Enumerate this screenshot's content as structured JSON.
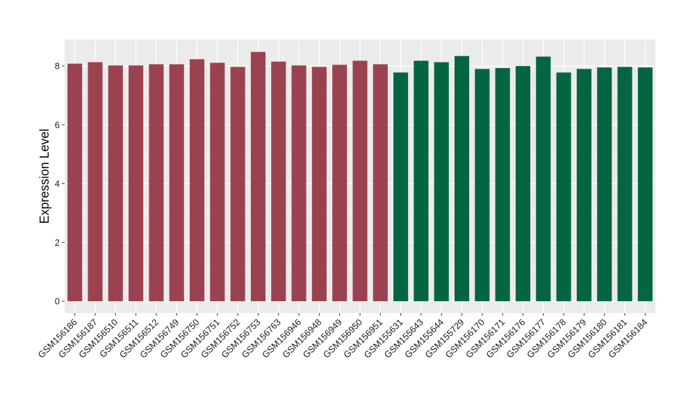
{
  "chart_data": {
    "type": "bar",
    "title": "",
    "xlabel": "",
    "ylabel": "Expression Level",
    "ylim": [
      -0.4,
      8.9
    ],
    "yticks": [
      0,
      2,
      4,
      6,
      8
    ],
    "grid": true,
    "legend": "none",
    "background_color": "#ebebeb",
    "grid_color": "#ffffff",
    "group_colors": [
      "#9b4250",
      "#036641"
    ],
    "categories": [
      "GSM156186",
      "GSM156187",
      "GSM156510",
      "GSM156511",
      "GSM156512",
      "GSM156749",
      "GSM156750",
      "GSM156751",
      "GSM156752",
      "GSM156753",
      "GSM156763",
      "GSM156946",
      "GSM156948",
      "GSM156949",
      "GSM156950",
      "GSM156951",
      "GSM155631",
      "GSM155643",
      "GSM155644",
      "GSM155729",
      "GSM156170",
      "GSM156171",
      "GSM156176",
      "GSM156177",
      "GSM156178",
      "GSM156179",
      "GSM156180",
      "GSM156181",
      "GSM156184"
    ],
    "values": [
      8.08,
      8.13,
      8.02,
      8.02,
      8.06,
      8.06,
      8.23,
      8.11,
      7.97,
      8.48,
      8.15,
      8.02,
      7.97,
      8.04,
      8.18,
      8.06,
      7.78,
      8.18,
      8.13,
      8.34,
      7.9,
      7.93,
      8.0,
      8.32,
      7.78,
      7.9,
      7.95,
      7.97,
      7.95
    ],
    "group": [
      0,
      0,
      0,
      0,
      0,
      0,
      0,
      0,
      0,
      0,
      0,
      0,
      0,
      0,
      0,
      0,
      1,
      1,
      1,
      1,
      1,
      1,
      1,
      1,
      1,
      1,
      1,
      1,
      1
    ]
  }
}
